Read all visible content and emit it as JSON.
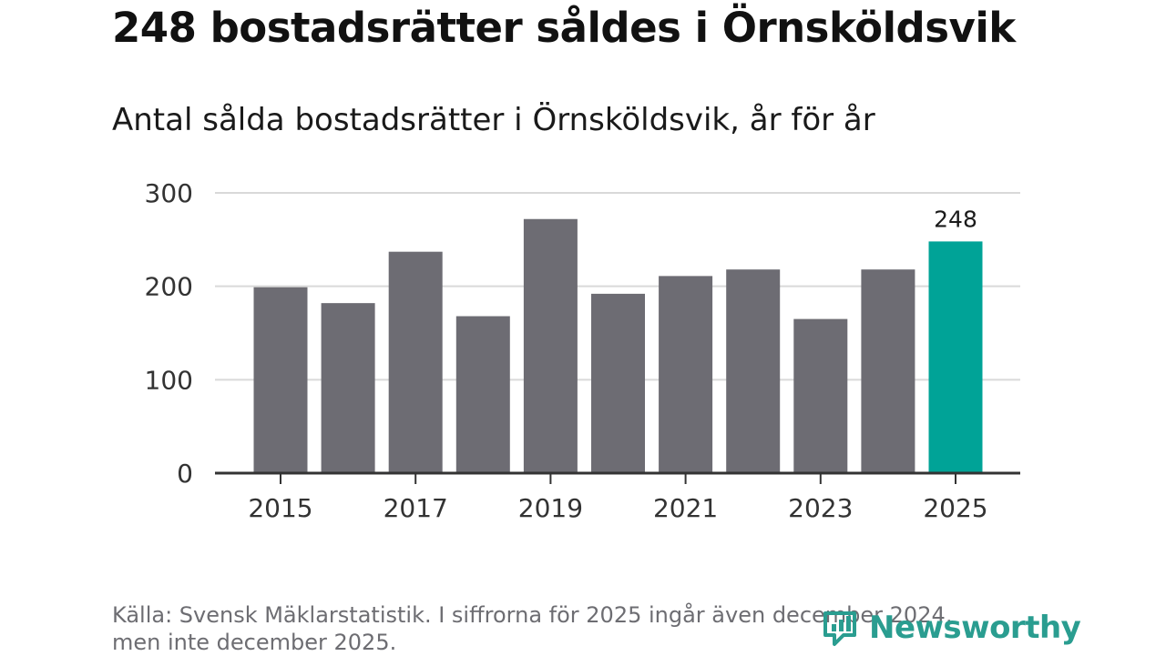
{
  "header": {
    "title": "248 bostadsrätter såldes i Örnsköldsvik",
    "subtitle": "Antal sålda bostadsrätter i Örnsköldsvik, år för år"
  },
  "footer": {
    "source_line1": "Källa: Svensk Mäklarstatistik. I siffrorna för 2025 ingår även december 2024,",
    "source_line2": "men inte december 2025.",
    "logo_text": "Newsworthy"
  },
  "colors": {
    "bar": "#6d6c73",
    "highlight": "#00a397",
    "grid": "#d9d9d9",
    "axis": "#333333",
    "brand": "#2a9d90"
  },
  "chart_data": {
    "type": "bar",
    "title": "Antal sålda bostadsrätter i Örnsköldsvik, år för år",
    "xlabel": "",
    "ylabel": "",
    "categories": [
      "2015",
      "2016",
      "2017",
      "2018",
      "2019",
      "2020",
      "2021",
      "2022",
      "2023",
      "2024",
      "2025"
    ],
    "values": [
      199,
      182,
      237,
      168,
      272,
      192,
      211,
      218,
      165,
      218,
      248
    ],
    "ylim": [
      0,
      300
    ],
    "yticks": [
      "0",
      "100",
      "200",
      "300"
    ],
    "xtick_labels": [
      "2015",
      "2017",
      "2019",
      "2021",
      "2023",
      "2025"
    ],
    "highlight_category": "2025",
    "data_label": "248",
    "grid": true
  }
}
